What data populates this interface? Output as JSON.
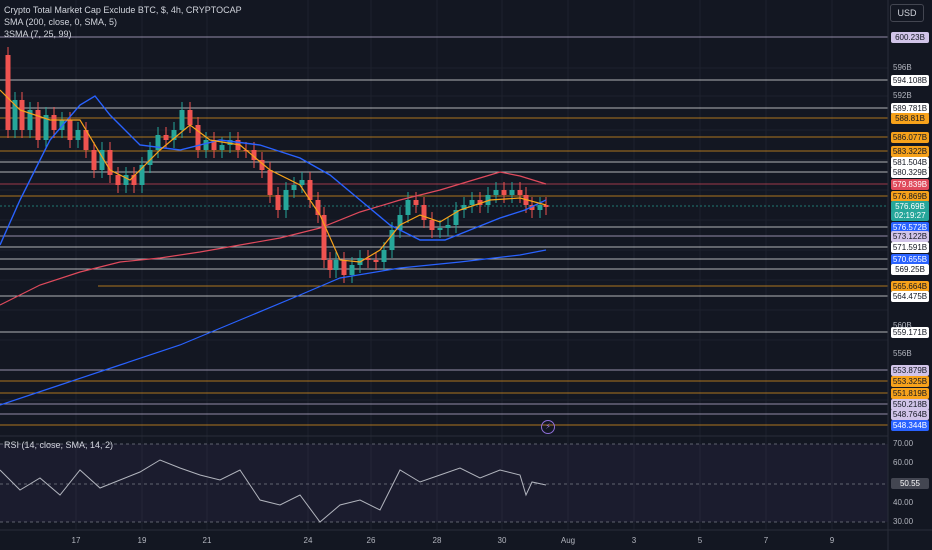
{
  "legend": {
    "title": "Crypto Total Market Cap Exclude BTC, $, 4h, CRYPTOCAP",
    "sma": "SMA (200, close, 0, SMA, 5)",
    "three_sma": "3SMA (7, 25, 99)"
  },
  "currency_button": "USD",
  "rsi_legend": "RSI (14, close, SMA, 14, 2)",
  "colors": {
    "background": "#131722",
    "candle_up": "#26a69a",
    "candle_down": "#ef5350",
    "sma200": "#2962ff",
    "sma7": "#f7a21b",
    "sma25": "#2962ff",
    "sma99": "#e04a5c",
    "rsi": "#b2b5be"
  },
  "price_labels": [
    {
      "text": "600.23B",
      "bg": "#d1c4e9",
      "fg": "#131722",
      "line": "#d1c4e9"
    },
    {
      "text": "594.108B",
      "bg": "#ffffff",
      "fg": "#131722",
      "line": "#ffffff"
    },
    {
      "text": "589.781B",
      "bg": "#ffffff",
      "fg": "#131722",
      "line": "#ffffff"
    },
    {
      "text": "588.81B",
      "bg": "#f7a21b",
      "fg": "#131722",
      "line": "#f7a21b"
    },
    {
      "text": "586.077B",
      "bg": "#f7a21b",
      "fg": "#131722",
      "line": "#f7a21b"
    },
    {
      "text": "583.322B",
      "bg": "#f7a21b",
      "fg": "#131722",
      "line": "#f7a21b"
    },
    {
      "text": "581.504B",
      "bg": "#ffffff",
      "fg": "#131722",
      "line": "#ffffff"
    },
    {
      "text": "580.329B",
      "bg": "#ffffff",
      "fg": "#131722",
      "line": "#ffffff"
    },
    {
      "text": "579.839B",
      "bg": "#e04a5c",
      "fg": "#ffffff",
      "line": "#e04a5c"
    },
    {
      "text": "576.869B",
      "bg": "#f7a21b",
      "fg": "#131722",
      "line": "#f7a21b"
    },
    {
      "text": "576.69B",
      "bg": "#26a69a",
      "fg": "#ffffff",
      "line": "#26a69a"
    },
    {
      "text": "02:19:27",
      "bg": "#26a69a",
      "fg": "#ffffff",
      "line": ""
    },
    {
      "text": "576.572B",
      "bg": "#2962ff",
      "fg": "#ffffff",
      "line": "#ffffff"
    },
    {
      "text": "573.122B",
      "bg": "#d1c4e9",
      "fg": "#131722",
      "line": "#d1c4e9"
    },
    {
      "text": "571.591B",
      "bg": "#ffffff",
      "fg": "#131722",
      "line": "#ffffff"
    },
    {
      "text": "570.655B",
      "bg": "#2962ff",
      "fg": "#ffffff",
      "line": "#ffffff"
    },
    {
      "text": "569.25B",
      "bg": "#ffffff",
      "fg": "#131722",
      "line": "#ffffff"
    },
    {
      "text": "565.664B",
      "bg": "#f7a21b",
      "fg": "#131722",
      "line": "#f7a21b"
    },
    {
      "text": "564.475B",
      "bg": "#ffffff",
      "fg": "#131722",
      "line": "#ffffff"
    },
    {
      "text": "559.171B",
      "bg": "#ffffff",
      "fg": "#131722",
      "line": "#ffffff"
    },
    {
      "text": "553.879B",
      "bg": "#d1c4e9",
      "fg": "#131722",
      "line": "#d1c4e9"
    },
    {
      "text": "553.325B",
      "bg": "#f7a21b",
      "fg": "#131722",
      "line": "#f7a21b"
    },
    {
      "text": "551.819B",
      "bg": "#f7a21b",
      "fg": "#131722",
      "line": "#f7a21b"
    },
    {
      "text": "550.218B",
      "bg": "#d1c4e9",
      "fg": "#131722",
      "line": "#d1c4e9"
    },
    {
      "text": "548.764B",
      "bg": "#d1c4e9",
      "fg": "#131722",
      "line": "#d1c4e9"
    },
    {
      "text": "548.344B",
      "bg": "#2962ff",
      "fg": "#ffffff",
      "line": "#f7a21b"
    }
  ],
  "price_ticks": [
    "596B",
    "592B",
    "560B",
    "556B"
  ],
  "rsi_ticks": [
    "70.00",
    "60.00",
    "40.00",
    "30.00"
  ],
  "rsi_value": "50.55",
  "x_ticks": [
    "17",
    "19",
    "21",
    "24",
    "26",
    "28",
    "30",
    "Aug",
    "3",
    "5",
    "7",
    "9"
  ]
}
